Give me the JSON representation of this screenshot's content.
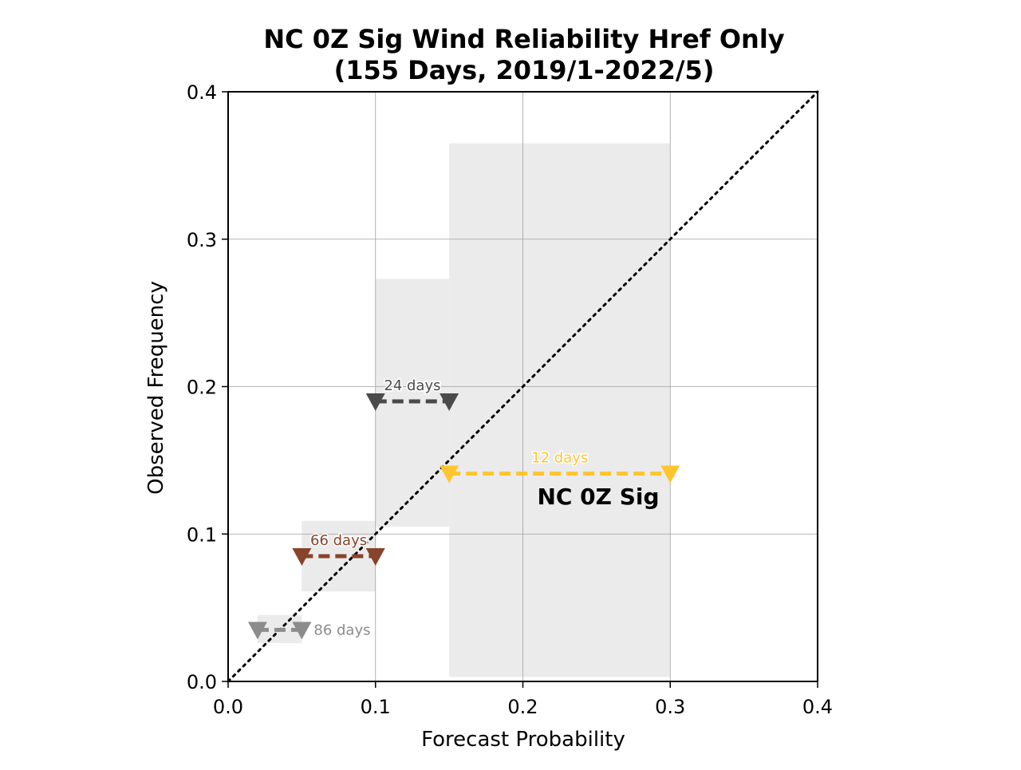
{
  "chart_data": {
    "type": "scatter",
    "title": "NC 0Z Sig Wind Reliability Href Only",
    "subtitle": "(155 Days, 2019/1-2022/5)",
    "xlabel": "Forecast Probability",
    "ylabel": "Observed Frequency",
    "xlim": [
      0.0,
      0.4
    ],
    "ylim": [
      0.0,
      0.4
    ],
    "xticks": [
      "0.0",
      "0.1",
      "0.2",
      "0.3",
      "0.4"
    ],
    "yticks": [
      "0.0",
      "0.1",
      "0.2",
      "0.3",
      "0.4"
    ],
    "grid": true,
    "diagonal": {
      "from": [
        0,
        0
      ],
      "to": [
        0.4,
        0.4
      ],
      "style": "dotted",
      "color": "#000000"
    },
    "region_label": "NC 0Z Sig",
    "bins": [
      {
        "x_low": 0.02,
        "x_high": 0.05,
        "observed": 0.035,
        "ci_low": 0.026,
        "ci_high": 0.045,
        "days_label": "86 days",
        "color": "#8c8c8c"
      },
      {
        "x_low": 0.05,
        "x_high": 0.1,
        "observed": 0.085,
        "ci_low": 0.061,
        "ci_high": 0.109,
        "days_label": "66 days",
        "color": "#87442a"
      },
      {
        "x_low": 0.1,
        "x_high": 0.15,
        "observed": 0.19,
        "ci_low": 0.105,
        "ci_high": 0.273,
        "days_label": "24 days",
        "color": "#4a4a4a"
      },
      {
        "x_low": 0.15,
        "x_high": 0.3,
        "observed": 0.141,
        "ci_low": 0.003,
        "ci_high": 0.365,
        "days_label": "12 days",
        "color": "#ffc52e"
      }
    ]
  }
}
